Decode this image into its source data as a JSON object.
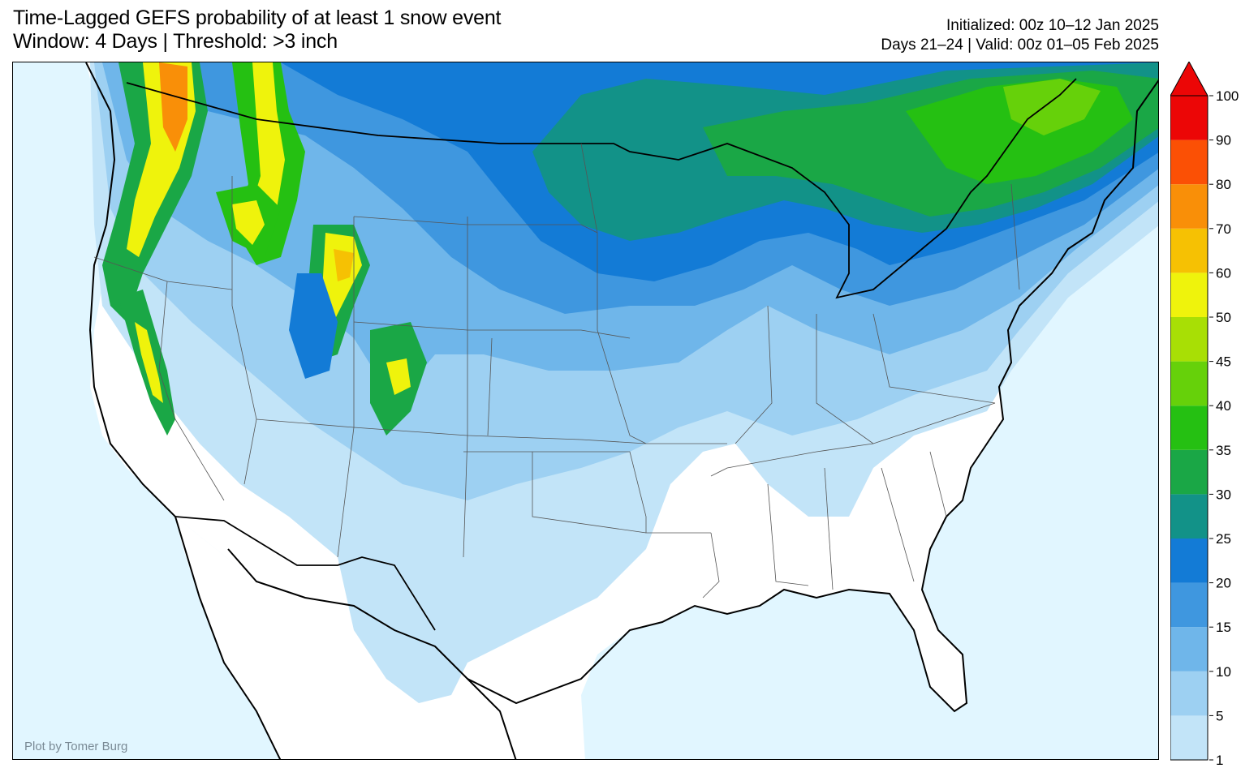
{
  "header": {
    "title_line1": "Time-Lagged GEFS probability of at least 1 snow event",
    "title_line2": "Window: 4 Days | Threshold: >3 inch",
    "init_line": "Initialized: 00z 10–12 Jan 2025",
    "valid_line": "Days 21–24 | Valid: 00z 01–05 Feb 2025"
  },
  "credit": "Plot by Tomer Burg",
  "colorbar": {
    "levels": [
      "1",
      "5",
      "10",
      "15",
      "20",
      "25",
      "30",
      "35",
      "40",
      "45",
      "50",
      "60",
      "70",
      "80",
      "90",
      "100"
    ],
    "colors": [
      "#c2e4f8",
      "#9dd0f2",
      "#6fb6ea",
      "#3f97df",
      "#137bd6",
      "#129288",
      "#1aa746",
      "#25c012",
      "#66d10a",
      "#a8df05",
      "#eff30c",
      "#f6c103",
      "#f98f08",
      "#fb5005",
      "#ec0606"
    ],
    "extend_color": "#ec0606"
  },
  "map": {
    "land_color": "#ffffff",
    "water_color": "#e1f6ff"
  }
}
